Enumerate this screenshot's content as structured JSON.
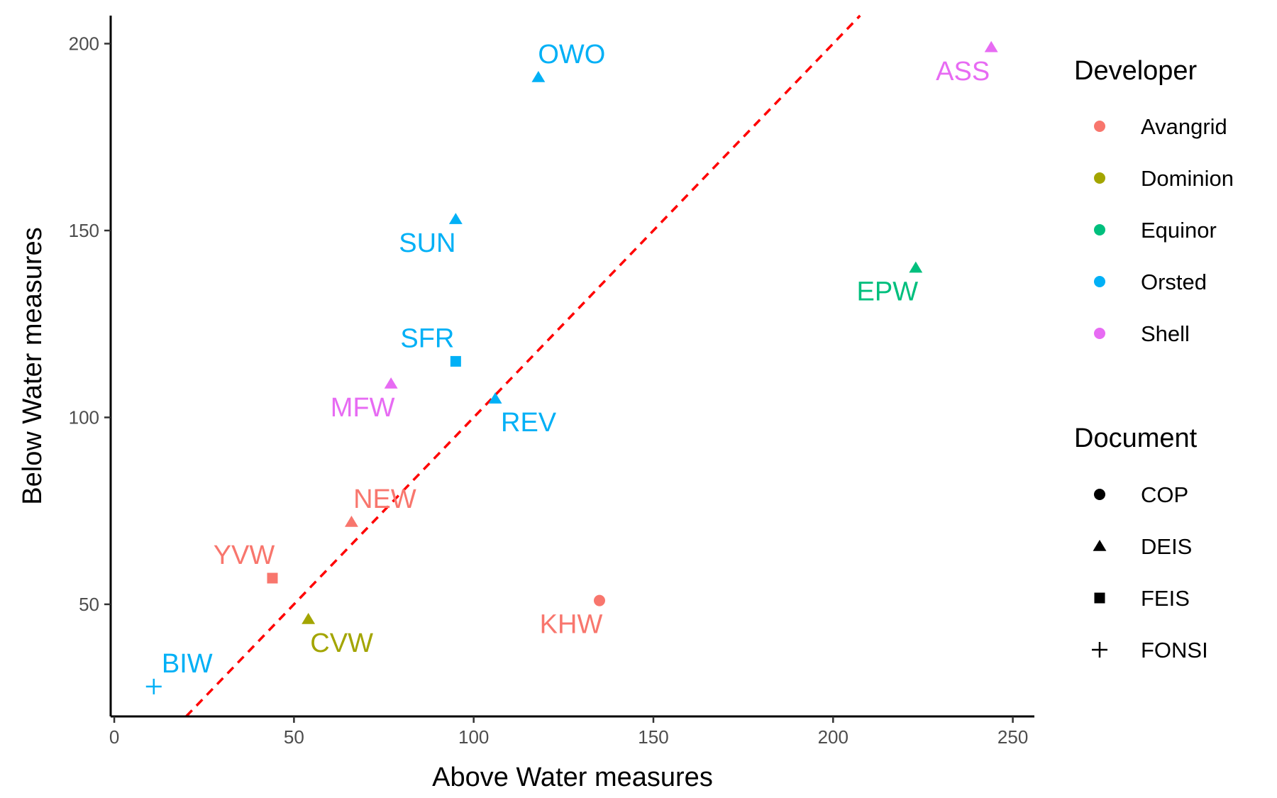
{
  "chart_data": {
    "type": "scatter",
    "xlabel": "Above Water measures",
    "ylabel": "Below Water measures",
    "xlim": [
      -1,
      256
    ],
    "ylim": [
      20,
      207.5
    ],
    "x_ticks": [
      0,
      50,
      100,
      150,
      200,
      250
    ],
    "y_ticks": [
      50,
      100,
      150,
      200
    ],
    "grid": false,
    "reference_line": {
      "style": "dashed",
      "color": "#ff0000",
      "slope": 1,
      "intercept": 0
    },
    "colors": {
      "Avangrid": "#f8766d",
      "Dominion": "#a3a500",
      "Equinor": "#00bf7d",
      "Orsted": "#00b0f6",
      "Shell": "#e76bf3"
    },
    "points": [
      {
        "label": "OWO",
        "x": 118,
        "y": 191,
        "developer": "Orsted",
        "document": "DEIS",
        "label_pos": "above"
      },
      {
        "label": "ASS",
        "x": 244,
        "y": 199,
        "developer": "Shell",
        "document": "DEIS",
        "label_pos": "below-left"
      },
      {
        "label": "SUN",
        "x": 95,
        "y": 153,
        "developer": "Orsted",
        "document": "DEIS",
        "label_pos": "below-left"
      },
      {
        "label": "EPW",
        "x": 223,
        "y": 140,
        "developer": "Equinor",
        "document": "DEIS",
        "label_pos": "below-left"
      },
      {
        "label": "SFR",
        "x": 95,
        "y": 115,
        "developer": "Orsted",
        "document": "FEIS",
        "label_pos": "above-left"
      },
      {
        "label": "MFW",
        "x": 77,
        "y": 109,
        "developer": "Shell",
        "document": "DEIS",
        "label_pos": "below-left"
      },
      {
        "label": "REV",
        "x": 106,
        "y": 105,
        "developer": "Orsted",
        "document": "DEIS",
        "label_pos": "below-right"
      },
      {
        "label": "NEW",
        "x": 66,
        "y": 72,
        "developer": "Avangrid",
        "document": "DEIS",
        "label_pos": "above-right"
      },
      {
        "label": "YVW",
        "x": 44,
        "y": 57,
        "developer": "Avangrid",
        "document": "FEIS",
        "label_pos": "above-left"
      },
      {
        "label": "KHW",
        "x": 135,
        "y": 51,
        "developer": "Avangrid",
        "document": "COP",
        "label_pos": "below-left"
      },
      {
        "label": "CVW",
        "x": 54,
        "y": 46,
        "developer": "Dominion",
        "document": "DEIS",
        "label_pos": "below-right"
      },
      {
        "label": "BIW",
        "x": 11,
        "y": 28,
        "developer": "Orsted",
        "document": "FONSI",
        "label_pos": "above-right"
      }
    ],
    "legend": {
      "placement": "right",
      "developer": {
        "title": "Developer",
        "items": [
          "Avangrid",
          "Dominion",
          "Equinor",
          "Orsted",
          "Shell"
        ]
      },
      "document": {
        "title": "Document",
        "items": [
          {
            "name": "COP",
            "shape": "circle"
          },
          {
            "name": "DEIS",
            "shape": "triangle"
          },
          {
            "name": "FEIS",
            "shape": "square"
          },
          {
            "name": "FONSI",
            "shape": "plus"
          }
        ]
      }
    }
  }
}
